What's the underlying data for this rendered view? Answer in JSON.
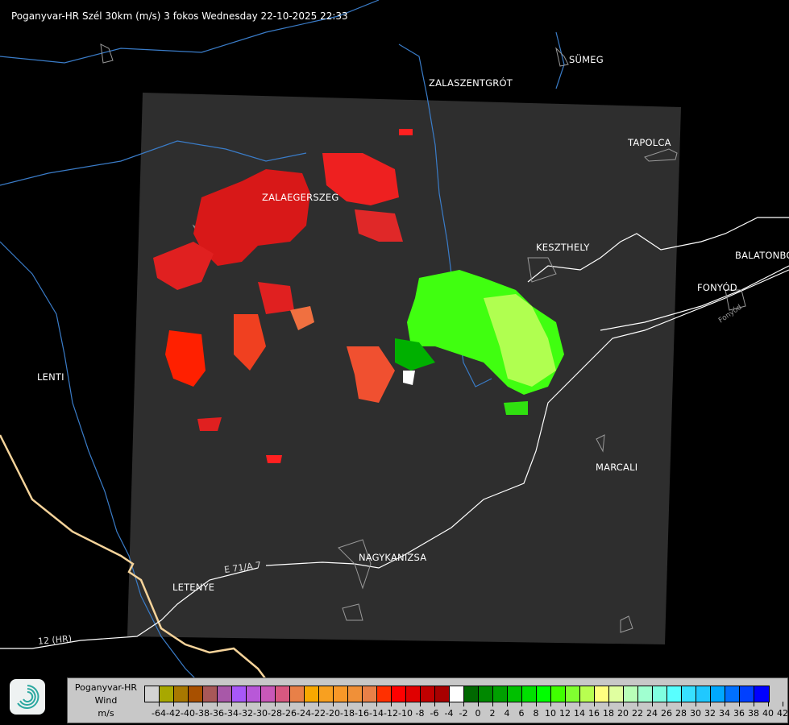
{
  "title": "Poganyvar-HR Szél 30km (m/s) 3 fokos Wednesday 22-10-2025 22:33",
  "cities": [
    {
      "name": "SÜMEG"
    },
    {
      "name": "ZALASZENTGRÓT"
    },
    {
      "name": "TAPOLCA"
    },
    {
      "name": "ZALAEGERSZEG"
    },
    {
      "name": "KESZTHELY"
    },
    {
      "name": "BALATONBO"
    },
    {
      "name": "FONYÓD"
    },
    {
      "name": "LENTI"
    },
    {
      "name": "MARCALI"
    },
    {
      "name": "NAGYKANIZSA"
    },
    {
      "name": "LETENYE"
    }
  ],
  "road_labels": [
    "E 71/A 7",
    "12 (HR)",
    "Fonyód"
  ],
  "legend": {
    "title_line1": "Poganyvar-HR",
    "title_line2": "Wind",
    "unit": "m/s",
    "logo_icon": "radar-swirl-logo",
    "colors": [
      "#d3d3d3",
      "#a8a800",
      "#a87800",
      "#a85000",
      "#a85858",
      "#a858a8",
      "#a858f8",
      "#b858d8",
      "#c858b8",
      "#d85880",
      "#e88048",
      "#f8a800",
      "#f8a020",
      "#f89828",
      "#f09038",
      "#e88048",
      "#ff3000",
      "#ff0000",
      "#e00000",
      "#c00000",
      "#a80000",
      "#ffffff",
      "#006800",
      "#008800",
      "#00a000",
      "#00c000",
      "#00e000",
      "#00ff00",
      "#40ff00",
      "#80ff30",
      "#b8ff50",
      "#ffff80",
      "#e0ffa0",
      "#b8ffb8",
      "#a0ffd0",
      "#80ffe0",
      "#58ffff",
      "#38e0ff",
      "#20c8ff",
      "#00a8ff",
      "#0070ff",
      "#0040ff",
      "#0000ff"
    ],
    "ticks": [
      "-64",
      "-42",
      "-40",
      "-38",
      "-36",
      "-34",
      "-32",
      "-30",
      "-28",
      "-26",
      "-24",
      "-22",
      "-20",
      "-18",
      "-16",
      "-14",
      "-12",
      "-10",
      "-8",
      "-6",
      "-4",
      "-2",
      "0",
      "2",
      "4",
      "6",
      "8",
      "10",
      "12",
      "14",
      "16",
      "18",
      "20",
      "22",
      "24",
      "26",
      "28",
      "30",
      "32",
      "34",
      "36",
      "38",
      "40",
      "42"
    ]
  },
  "colors": {
    "coverage": "#2e2e2e",
    "river": "#3a7cc8",
    "border": "#f5d39a",
    "road": "#ffffff",
    "settlement": "#aaaaaa"
  }
}
